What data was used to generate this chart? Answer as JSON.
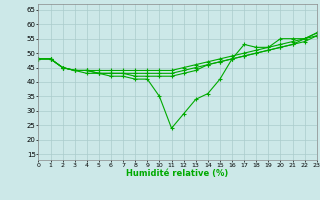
{
  "title": "",
  "xlabel": "Humidité relative (%)",
  "ylabel": "",
  "bg_color": "#cce8e8",
  "grid_color": "#aacccc",
  "line_color": "#00aa00",
  "x_ticks": [
    0,
    1,
    2,
    3,
    4,
    5,
    6,
    7,
    8,
    9,
    10,
    11,
    12,
    13,
    14,
    15,
    16,
    17,
    18,
    19,
    20,
    21,
    22,
    23
  ],
  "y_ticks": [
    15,
    20,
    25,
    30,
    35,
    40,
    45,
    50,
    55,
    60,
    65
  ],
  "xlim": [
    0,
    23
  ],
  "ylim": [
    13,
    67
  ],
  "series": [
    [
      48,
      48,
      45,
      44,
      43,
      43,
      42,
      42,
      41,
      41,
      35,
      24,
      29,
      34,
      36,
      41,
      48,
      53,
      52,
      52,
      55,
      55,
      55,
      57
    ],
    [
      48,
      48,
      45,
      44,
      44,
      44,
      44,
      44,
      44,
      44,
      44,
      44,
      45,
      46,
      47,
      48,
      49,
      50,
      51,
      52,
      53,
      54,
      55,
      57
    ],
    [
      48,
      48,
      45,
      44,
      44,
      43,
      43,
      43,
      43,
      43,
      43,
      43,
      44,
      45,
      46,
      47,
      48,
      49,
      50,
      51,
      52,
      53,
      54,
      56
    ],
    [
      48,
      48,
      45,
      44,
      44,
      43,
      43,
      43,
      42,
      42,
      42,
      42,
      43,
      44,
      46,
      47,
      48,
      49,
      50,
      51,
      52,
      53,
      55,
      56
    ]
  ]
}
